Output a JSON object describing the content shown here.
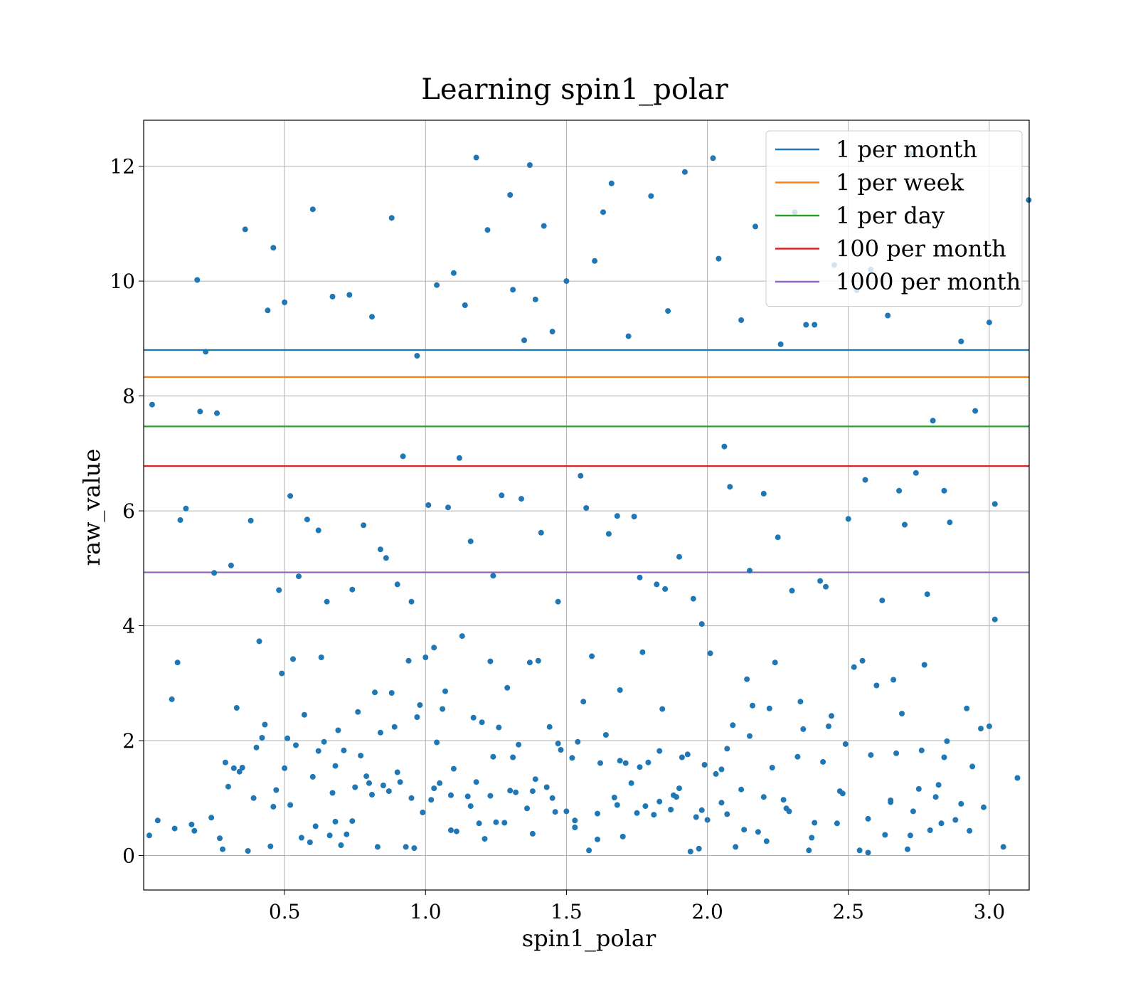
{
  "chart_data": {
    "type": "scatter",
    "title": "Learning spin1_polar",
    "xlabel": "spin1_polar",
    "ylabel": "raw_value",
    "xlim": [
      0.0,
      3.1416
    ],
    "ylim": [
      -0.6,
      12.8
    ],
    "xticks": [
      0.5,
      1.0,
      1.5,
      2.0,
      2.5,
      3.0
    ],
    "xtick_labels": [
      "0.5",
      "1.0",
      "1.5",
      "2.0",
      "2.5",
      "3.0"
    ],
    "yticks": [
      0,
      2,
      4,
      6,
      8,
      10,
      12
    ],
    "ytick_labels": [
      "0",
      "2",
      "4",
      "6",
      "8",
      "10",
      "12"
    ],
    "grid": true,
    "legend_position": "top-right",
    "point_color": "#1f77b4",
    "hlines": [
      {
        "name": "1 per month",
        "y": 8.8,
        "color": "#1f77b4"
      },
      {
        "name": "1 per week",
        "y": 8.33,
        "color": "#ff7f0e"
      },
      {
        "name": "1 per day",
        "y": 7.47,
        "color": "#2ca02c"
      },
      {
        "name": "100 per month",
        "y": 6.78,
        "color": "#d62728"
      },
      {
        "name": "1000 per month",
        "y": 4.93,
        "color": "#9467bd"
      }
    ],
    "points": {
      "x": [
        0.02,
        0.03,
        0.19,
        0.2,
        0.52,
        0.6,
        0.88,
        0.5,
        0.46,
        0.9,
        1.18,
        1.37,
        1.1,
        1.22,
        1.3,
        1.42,
        1.63,
        1.66,
        1.8,
        2.02,
        1.92,
        2.17,
        2.31,
        2.35,
        2.45,
        2.58,
        2.72,
        2.9,
        3.0,
        3.02,
        3.1,
        3.14,
        0.36,
        0.44,
        0.67,
        0.73,
        0.81,
        0.97,
        1.04,
        1.14,
        1.31,
        1.39,
        1.5,
        1.6,
        1.72,
        1.86,
        2.04,
        2.12,
        2.26,
        2.38,
        2.53,
        2.64,
        2.8,
        2.95,
        0.25,
        0.26,
        0.29,
        0.31,
        0.55,
        0.7,
        0.76,
        0.84,
        0.95,
        1.06,
        1.12,
        1.24,
        1.35,
        1.45,
        1.55,
        1.65,
        1.76,
        1.85,
        1.95,
        2.06,
        2.15,
        2.25,
        2.4,
        2.5,
        2.62,
        2.7,
        2.78,
        2.86,
        3.02,
        0.13,
        0.15,
        0.22,
        0.38,
        0.48,
        0.58,
        0.62,
        0.65,
        0.78,
        0.86,
        0.92,
        1.01,
        1.08,
        1.16,
        1.27,
        1.34,
        1.41,
        1.47,
        1.57,
        1.68,
        1.74,
        1.82,
        1.9,
        1.98,
        2.08,
        2.2,
        2.3,
        2.42,
        2.56,
        2.68,
        2.74,
        2.84,
        0.1,
        0.12,
        0.17,
        0.32,
        0.42,
        0.53,
        0.64,
        0.71,
        0.8,
        0.88,
        0.98,
        1.03,
        1.13,
        1.2,
        1.26,
        1.33,
        1.4,
        1.48,
        1.56,
        1.64,
        1.71,
        1.79,
        1.88,
        1.96,
        2.05,
        2.14,
        2.22,
        2.33,
        2.44,
        2.55,
        2.66,
        2.76,
        2.82,
        2.92,
        3.0,
        0.05,
        0.11,
        0.18,
        0.28,
        0.34,
        0.4,
        0.47,
        0.56,
        0.61,
        0.68,
        0.75,
        0.83,
        0.9,
        0.96,
        1.02,
        1.09,
        1.15,
        1.21,
        1.28,
        1.36,
        1.43,
        1.5,
        1.58,
        1.67,
        1.73,
        1.81,
        1.89,
        1.97,
        2.03,
        2.1,
        2.18,
        2.27,
        2.36,
        2.47,
        2.57,
        2.65,
        2.72,
        2.83,
        2.93,
        3.05,
        0.27,
        0.33,
        0.41,
        0.49,
        0.57,
        0.63,
        0.69,
        0.74,
        0.82,
        0.89,
        0.94,
        1.0,
        1.07,
        1.17,
        1.23,
        1.29,
        1.37,
        1.44,
        1.52,
        1.59,
        1.69,
        1.77,
        1.84,
        1.93,
        2.01,
        2.09,
        2.16,
        2.24,
        2.34,
        2.43,
        2.52,
        2.6,
        2.69,
        2.77,
        2.85,
        2.97,
        0.3,
        0.37,
        0.45,
        0.51,
        0.59,
        0.66,
        0.72,
        0.79,
        0.85,
        0.93,
        0.99,
        1.05,
        1.11,
        1.19,
        1.25,
        1.32,
        1.38,
        1.46,
        1.53,
        1.61,
        1.7,
        1.78,
        1.87,
        1.94,
        2.0,
        2.07,
        2.13,
        2.21,
        2.28,
        2.37,
        2.46,
        2.54,
        2.63,
        2.71,
        2.79,
        2.88,
        2.98,
        0.35,
        0.43,
        0.5,
        0.54,
        0.62,
        0.68,
        0.77,
        0.84,
        0.91,
        0.97,
        1.04,
        1.1,
        1.18,
        1.24,
        1.31,
        1.39,
        1.47,
        1.54,
        1.62,
        1.69,
        1.76,
        1.83,
        1.91,
        1.99,
        2.07,
        2.15,
        2.23,
        2.32,
        2.41,
        2.49,
        2.58,
        2.67,
        2.75,
        2.84,
        2.94,
        0.24,
        0.39,
        0.46,
        0.52,
        0.6,
        0.67,
        0.74,
        0.81,
        0.87,
        0.95,
        1.03,
        1.09,
        1.16,
        1.23,
        1.3,
        1.38,
        1.45,
        1.53,
        1.61,
        1.68,
        1.75,
        1.83,
        1.9,
        1.98,
        2.05,
        2.12,
        2.2,
        2.29,
        2.38,
        2.48,
        2.57,
        2.65,
        2.73,
        2.81,
        2.9
      ],
      "y": [
        0.35,
        7.85,
        10.02,
        7.73,
        6.26,
        11.25,
        11.1,
        9.63,
        10.58,
        4.72,
        12.15,
        12.02,
        10.14,
        10.89,
        11.5,
        10.96,
        11.2,
        11.7,
        11.48,
        12.14,
        11.9,
        10.95,
        11.2,
        9.24,
        10.28,
        10.2,
        12.22,
        8.95,
        9.28,
        6.12,
        1.35,
        11.41,
        10.9,
        9.49,
        9.73,
        9.76,
        9.38,
        8.7,
        9.93,
        9.58,
        9.85,
        9.68,
        10.0,
        10.35,
        9.04,
        9.48,
        10.39,
        9.32,
        8.9,
        9.24,
        9.84,
        9.4,
        7.57,
        7.74,
        4.92,
        7.7,
        1.62,
        5.05,
        4.86,
        0.18,
        2.5,
        5.33,
        4.42,
        2.55,
        6.92,
        4.87,
        8.97,
        9.12,
        6.61,
        5.6,
        4.84,
        4.64,
        4.47,
        7.12,
        4.96,
        5.54,
        4.78,
        5.86,
        4.44,
        5.76,
        4.55,
        5.8,
        4.11,
        5.84,
        6.04,
        8.77,
        5.83,
        4.62,
        5.85,
        5.66,
        4.42,
        5.75,
        5.18,
        6.95,
        6.1,
        6.06,
        5.47,
        6.27,
        6.21,
        5.62,
        4.42,
        6.05,
        5.91,
        5.9,
        4.72,
        5.2,
        4.03,
        6.42,
        6.3,
        4.61,
        4.68,
        6.54,
        6.35,
        6.66,
        6.35,
        2.72,
        3.36,
        0.54,
        1.52,
        2.05,
        3.42,
        1.98,
        1.83,
        1.26,
        2.83,
        2.62,
        3.62,
        3.82,
        2.32,
        2.23,
        1.93,
        3.39,
        1.84,
        2.68,
        2.1,
        1.61,
        1.62,
        1.05,
        0.67,
        1.5,
        3.07,
        2.56,
        2.68,
        2.43,
        3.39,
        3.06,
        1.83,
        1.23,
        2.56,
        2.25,
        0.61,
        0.47,
        0.43,
        0.11,
        1.46,
        1.88,
        1.14,
        0.31,
        0.51,
        0.59,
        1.19,
        0.15,
        1.45,
        0.13,
        0.97,
        0.44,
        1.03,
        0.29,
        0.57,
        0.82,
        1.19,
        0.77,
        0.09,
        1.01,
        1.26,
        0.71,
        1.02,
        0.12,
        1.42,
        0.15,
        0.41,
        0.97,
        0.09,
        1.12,
        0.05,
        0.93,
        0.35,
        0.56,
        0.43,
        0.15,
        0.3,
        2.57,
        3.73,
        3.17,
        2.45,
        3.45,
        2.18,
        4.63,
        2.84,
        2.24,
        3.39,
        3.45,
        2.86,
        2.4,
        3.38,
        2.92,
        3.36,
        2.24,
        1.7,
        3.47,
        2.88,
        3.54,
        2.55,
        1.76,
        3.52,
        2.27,
        2.61,
        3.36,
        2.2,
        2.25,
        3.28,
        2.96,
        2.47,
        3.32,
        1.99,
        2.21,
        1.2,
        0.08,
        0.16,
        2.04,
        0.23,
        0.35,
        0.37,
        1.38,
        1.22,
        0.15,
        0.75,
        1.26,
        0.42,
        0.56,
        0.58,
        1.1,
        0.38,
        0.76,
        0.49,
        0.28,
        0.33,
        0.86,
        0.8,
        0.07,
        0.62,
        0.72,
        0.45,
        0.25,
        0.82,
        0.31,
        0.56,
        0.09,
        0.36,
        0.11,
        0.44,
        0.62,
        0.84,
        1.53,
        2.28,
        1.52,
        1.92,
        1.82,
        1.56,
        1.74,
        2.14,
        1.28,
        2.41,
        1.97,
        1.51,
        1.28,
        1.72,
        1.71,
        1.33,
        1.95,
        1.98,
        1.61,
        1.65,
        1.54,
        1.82,
        1.71,
        1.58,
        1.86,
        2.08,
        1.53,
        1.72,
        1.63,
        1.94,
        1.75,
        1.78,
        1.16,
        1.71,
        1.55,
        0.66,
        1.0,
        0.85,
        0.88,
        1.37,
        1.09,
        0.6,
        1.06,
        1.12,
        1.0,
        1.17,
        1.05,
        0.86,
        1.04,
        1.13,
        1.12,
        1.0,
        0.61,
        0.73,
        0.88,
        0.74,
        0.94,
        1.17,
        0.79,
        0.92,
        1.15,
        1.02,
        0.77,
        0.57,
        1.08,
        0.64,
        0.96,
        0.77,
        1.02,
        0.9
      ]
    },
    "point_radius": 4
  }
}
